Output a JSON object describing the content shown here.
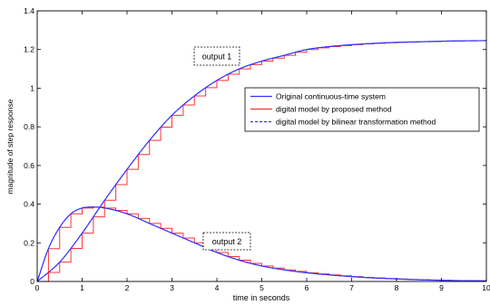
{
  "chart_data": {
    "type": "line",
    "title": "",
    "xlabel": "time in seconds",
    "ylabel": "magnitude of step response",
    "xlim": [
      0,
      10
    ],
    "ylim": [
      0,
      1.4
    ],
    "xticks": [
      "0",
      "1",
      "2",
      "3",
      "4",
      "5",
      "6",
      "7",
      "8",
      "9",
      "10"
    ],
    "yticks": [
      "0",
      "0.2",
      "0.4",
      "0.6",
      "0.8",
      "1",
      "1.2",
      "1.4"
    ],
    "grid": false,
    "legend_position": "right",
    "step_sample_time": 0.25,
    "series": [
      {
        "name": "Original continuous-time system",
        "color": "#3333ff",
        "style": "solid"
      },
      {
        "name": "digital model by proposed method",
        "color": "#ff3333",
        "style": "solid",
        "rendering": "staircase"
      },
      {
        "name": "digital model by bilinear transformation method",
        "color": "#3333ff",
        "style": "dashed"
      }
    ],
    "curves": [
      {
        "label": "output 1",
        "x": [
          0,
          0.5,
          1,
          1.5,
          2,
          2.5,
          3,
          3.5,
          4,
          4.5,
          5,
          5.5,
          6,
          6.5,
          7,
          7.5,
          8,
          8.5,
          9,
          9.5,
          10
        ],
        "y": [
          0,
          0.1,
          0.25,
          0.42,
          0.58,
          0.73,
          0.86,
          0.96,
          1.04,
          1.1,
          1.14,
          1.17,
          1.2,
          1.215,
          1.225,
          1.232,
          1.237,
          1.24,
          1.243,
          1.245,
          1.246
        ]
      },
      {
        "label": "output 2",
        "x": [
          0,
          0.25,
          0.5,
          0.75,
          1,
          1.25,
          1.5,
          2,
          2.5,
          3,
          3.5,
          4,
          4.5,
          5,
          5.5,
          6,
          7,
          8,
          9,
          10
        ],
        "y": [
          0,
          0.17,
          0.28,
          0.35,
          0.38,
          0.385,
          0.38,
          0.35,
          0.3,
          0.25,
          0.2,
          0.15,
          0.11,
          0.08,
          0.06,
          0.045,
          0.025,
          0.013,
          0.006,
          0.003
        ]
      }
    ],
    "annotations": [
      "output 1",
      "output 2"
    ]
  }
}
